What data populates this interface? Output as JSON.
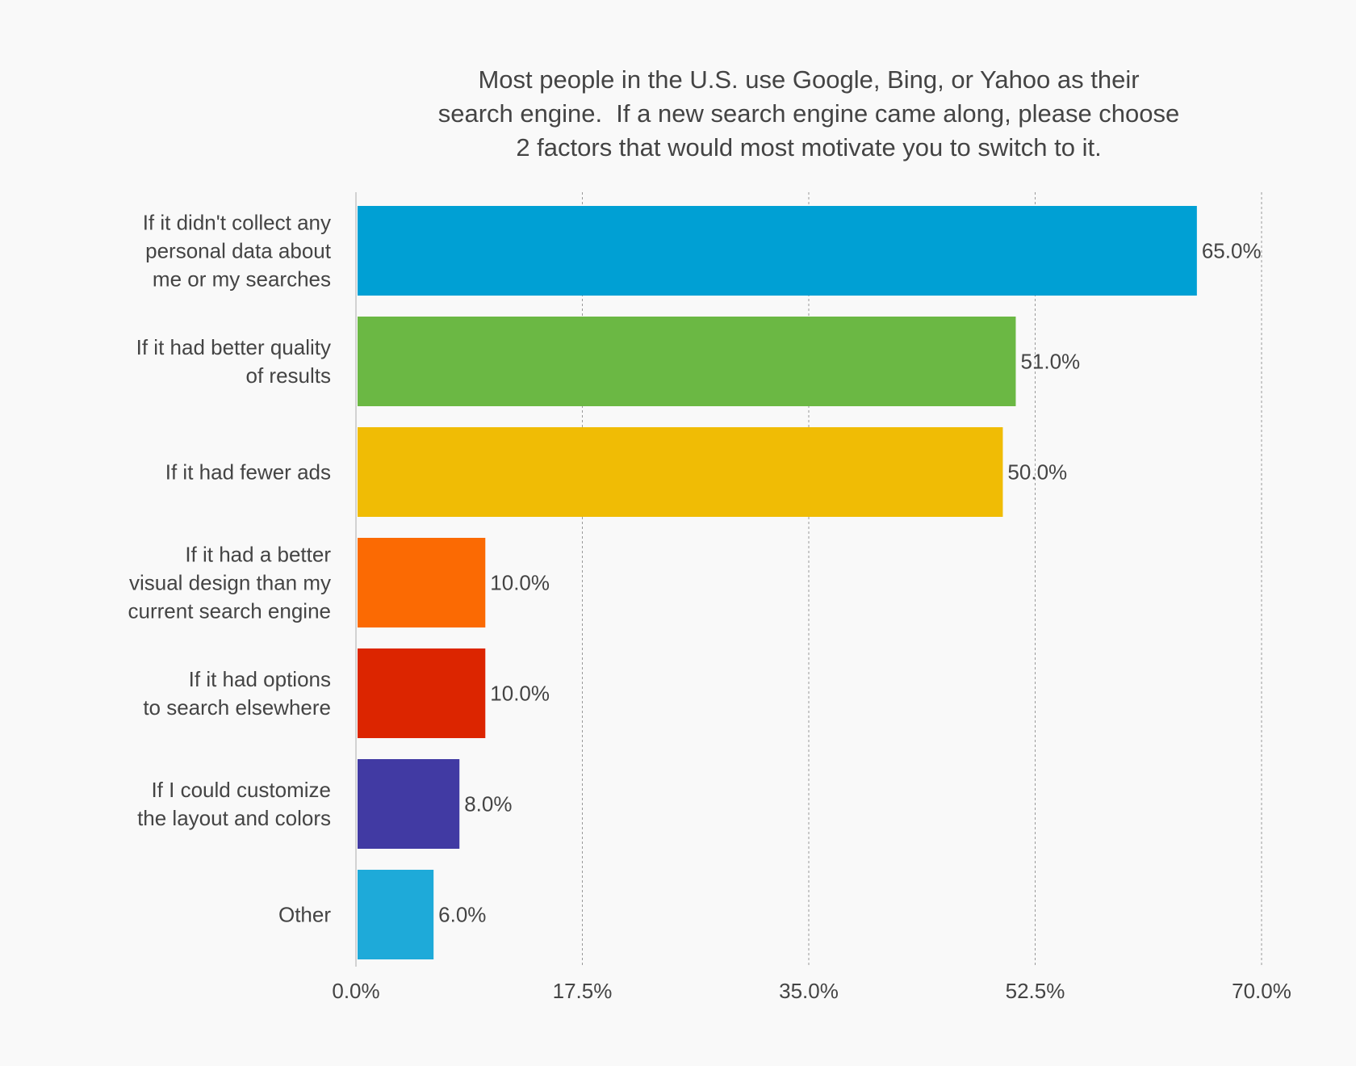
{
  "chart_data": {
    "type": "bar",
    "orientation": "horizontal",
    "title_lines": [
      "Most people in the U.S. use Google, Bing, or Yahoo as their",
      "search engine.  If a new search engine came along, please choose",
      "2 factors that would most motivate you to switch to it."
    ],
    "categories": [
      [
        "If it didn't collect any",
        "personal data about",
        "me or my searches"
      ],
      [
        "If it had better quality",
        "of results"
      ],
      [
        "If it had fewer ads"
      ],
      [
        "If it had a better",
        "visual design than my",
        "current search engine"
      ],
      [
        "If it had options",
        "to search elsewhere"
      ],
      [
        "If I could customize",
        "the layout and colors"
      ],
      [
        "Other"
      ]
    ],
    "values": [
      65.0,
      51.0,
      50.0,
      10.0,
      10.0,
      8.0,
      6.0
    ],
    "data_labels": [
      "65.0%",
      "51.0%",
      "50.0%",
      "10.0%",
      "10.0%",
      "8.0%",
      "6.0%"
    ],
    "colors": [
      "#00a0d4",
      "#6bb844",
      "#f0bc05",
      "#fb6a03",
      "#dc2500",
      "#413aa3",
      "#1eaad9"
    ],
    "xlim": [
      0,
      70
    ],
    "xticks": [
      0,
      17.5,
      35,
      52.5,
      70
    ],
    "xtick_labels": [
      "0.0%",
      "17.5%",
      "35.0%",
      "52.5%",
      "70.0%"
    ],
    "grid": "vertical dotted",
    "xlabel": "",
    "ylabel": ""
  }
}
